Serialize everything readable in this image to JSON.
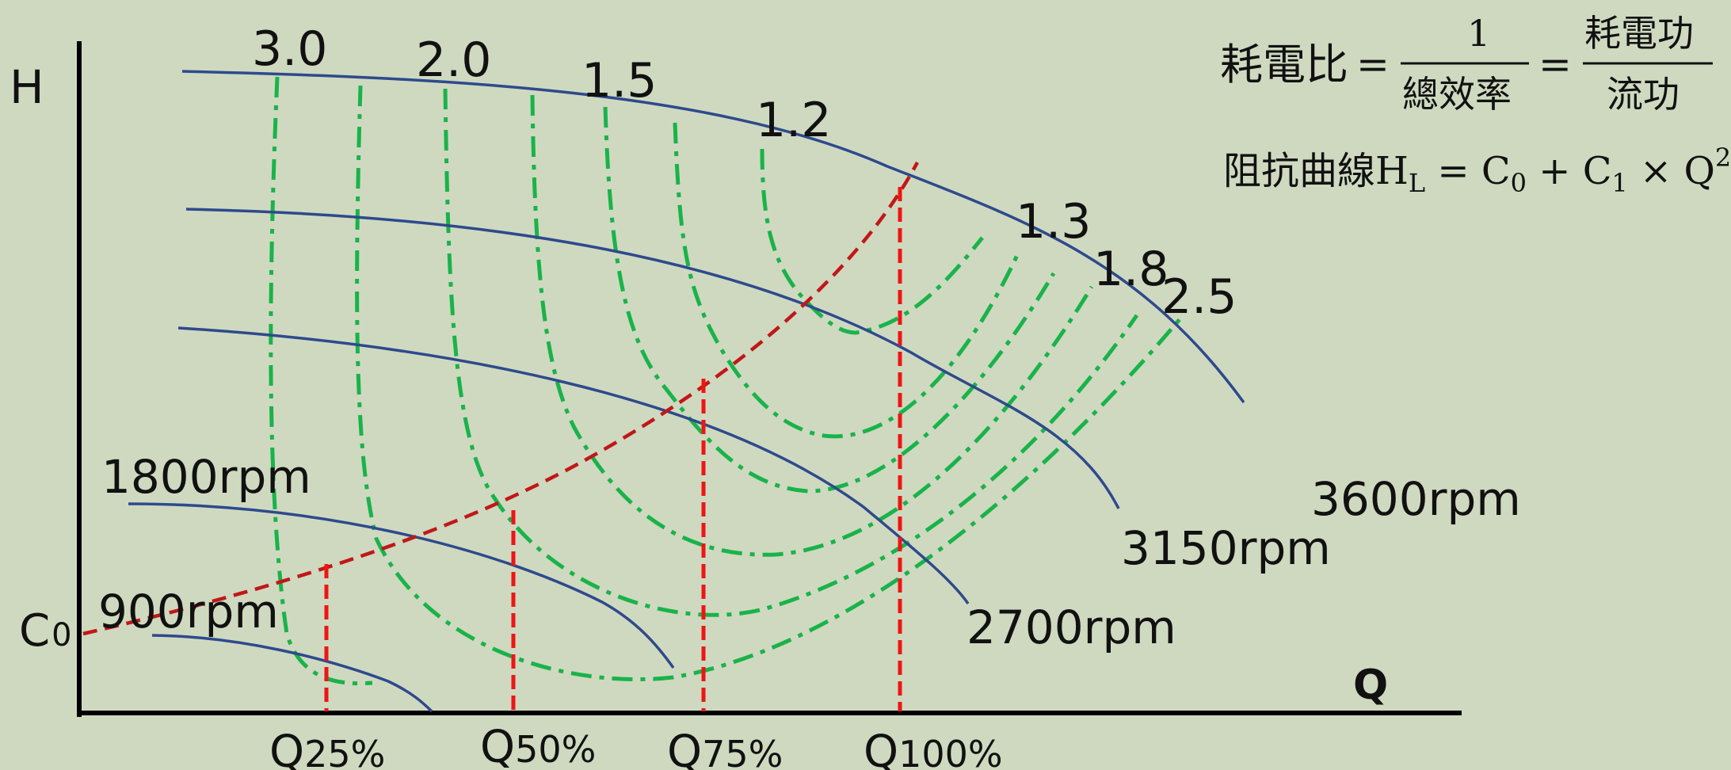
{
  "axes": {
    "y_label": "H",
    "x_label": "Q",
    "origin_label": "C0"
  },
  "speed_curves": [
    {
      "label": "3600rpm"
    },
    {
      "label": "3150rpm"
    },
    {
      "label": "2700rpm"
    },
    {
      "label": "1800rpm"
    },
    {
      "label": "900rpm"
    }
  ],
  "ratio_labels": [
    "3.0",
    "2.0",
    "1.5",
    "1.2",
    "1.3",
    "1.8",
    "2.5"
  ],
  "flow_points": [
    {
      "label": "Q",
      "sub": "25%"
    },
    {
      "label": "Q",
      "sub": "50%"
    },
    {
      "label": "Q",
      "sub": "75%"
    },
    {
      "label": "Q",
      "sub": "100%"
    }
  ],
  "formula": {
    "line1_lhs": "耗電比",
    "frac1_num": "1",
    "frac1_den": "總效率",
    "frac2_num": "耗電功",
    "frac2_den": "流功",
    "line2": "阻抗曲線H",
    "line2_sub": "L",
    "line2_rhs": " = C",
    "c0_sub": "0",
    "plus": " + C",
    "c1_sub": "1",
    "times": " × Q",
    "q_sup": "2"
  },
  "colors": {
    "background": "#cfd9c0",
    "axis": "#000000",
    "speed_curve": "#2e4a8c",
    "efficiency_curve": "#19b34a",
    "system_curve": "#c01818",
    "flow_marker": "#ee1515"
  }
}
